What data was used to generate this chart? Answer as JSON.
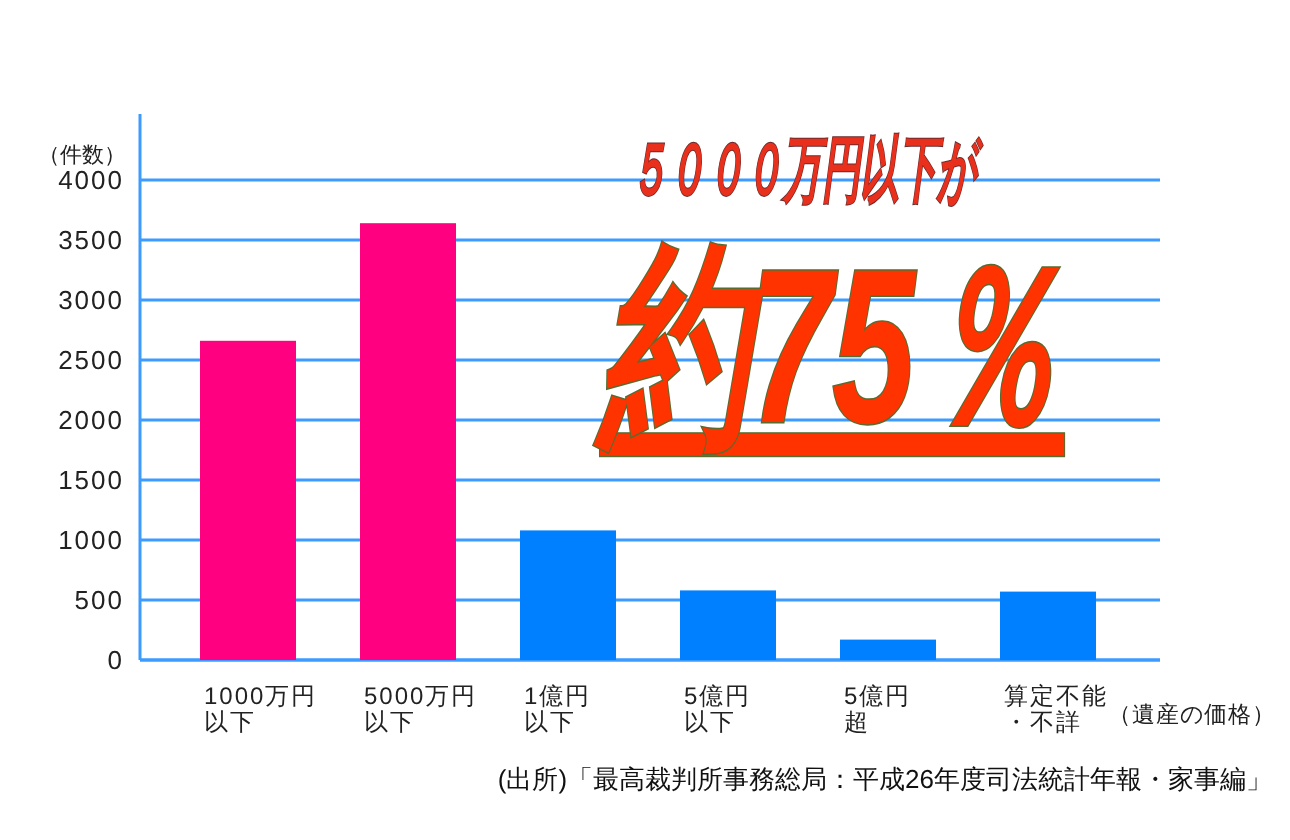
{
  "chart_data": {
    "type": "bar",
    "title": "５０００万円以下が",
    "subtitle": "約75％",
    "ylabel": "（件数）",
    "xlabel": "（遺産の価格）",
    "categories": [
      "1000万円以下",
      "5000万円以下",
      "1億円以下",
      "5億円以下",
      "5億円超",
      "算定不能・不詳"
    ],
    "values": [
      2660,
      3640,
      1080,
      580,
      170,
      570
    ],
    "colors": [
      "#ff0080",
      "#ff0080",
      "#0080ff",
      "#0080ff",
      "#0080ff",
      "#0080ff"
    ],
    "ylim": [
      0,
      4550
    ],
    "yticks": [
      0,
      500,
      1000,
      1500,
      2000,
      2500,
      3000,
      3500,
      4000
    ],
    "grid": "y",
    "annotations": [
      "(出所)「最高裁判所事務総局：平成26年度司法統計年報・家事編」"
    ]
  }
}
